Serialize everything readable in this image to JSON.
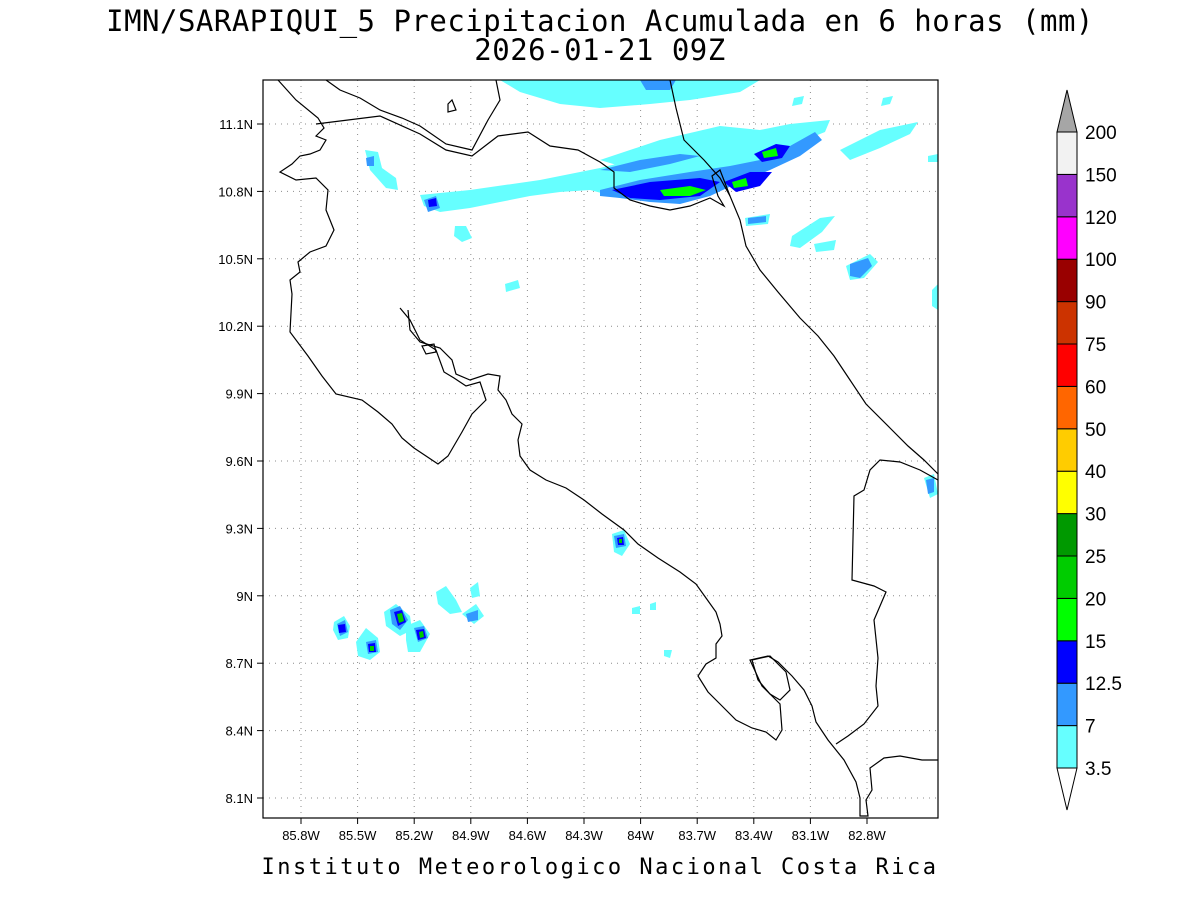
{
  "title": {
    "line1": "IMN/SARAPIQUI_5 Precipitacion Acumulada en 6 horas (mm)",
    "line2": "2026-01-21 09Z"
  },
  "footer": "Instituto Meteorologico Nacional Costa Rica",
  "axes": {
    "lon_ticks": [
      "85.8W",
      "85.5W",
      "85.2W",
      "84.9W",
      "84.6W",
      "84.3W",
      "84W",
      "83.7W",
      "83.4W",
      "83.1W",
      "82.8W"
    ],
    "lat_ticks": [
      "11.1N",
      "10.8N",
      "10.5N",
      "10.2N",
      "9.9N",
      "9.6N",
      "9.3N",
      "9N",
      "8.7N",
      "8.4N",
      "8.1N"
    ],
    "grid": true
  },
  "colorbar": {
    "levels": [
      "3.5",
      "7",
      "12.5",
      "15",
      "20",
      "25",
      "30",
      "40",
      "50",
      "60",
      "75",
      "90",
      "100",
      "120",
      "150",
      "200"
    ],
    "colors": [
      "#66ffff",
      "#3399ff",
      "#0000ff",
      "#00ff00",
      "#00cc00",
      "#009900",
      "#ffff00",
      "#ffcc00",
      "#ff6600",
      "#ff0000",
      "#cc3300",
      "#990000",
      "#ff00ff",
      "#9933cc",
      "#f2f2f2",
      "#a6a6a6"
    ],
    "under_color": "#ffffff"
  },
  "precip_colors": {
    "c1": "#66ffff",
    "c2": "#3399ff",
    "c3": "#0000ff",
    "c4": "#00ff00",
    "c5": "#00cc00"
  }
}
